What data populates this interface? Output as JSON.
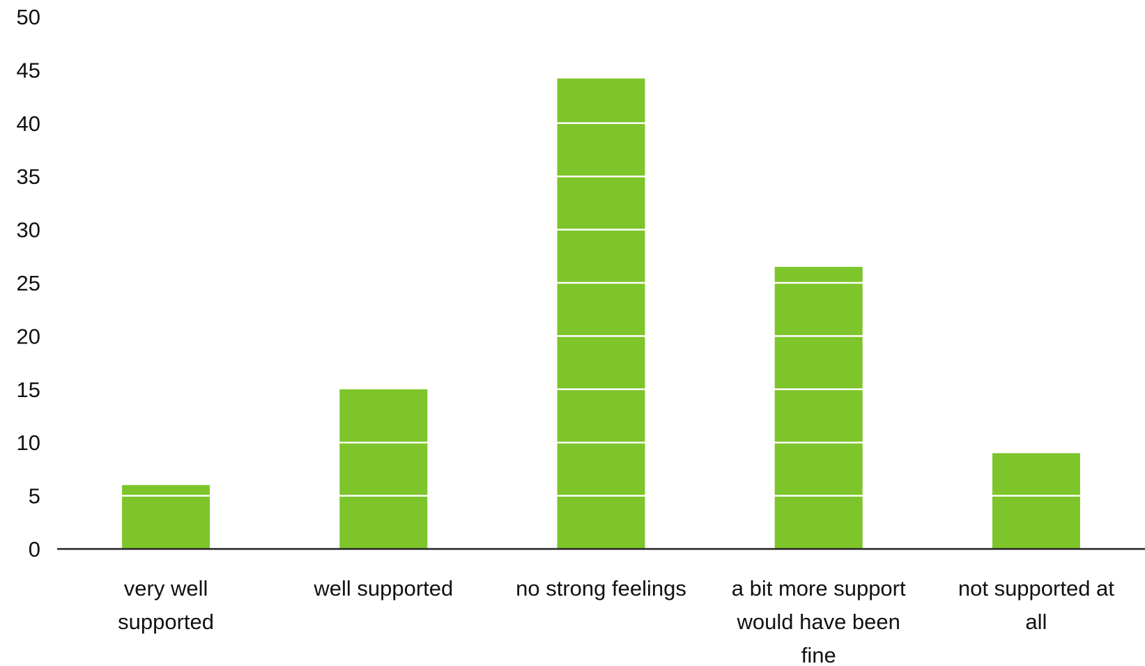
{
  "chart_data": {
    "type": "bar",
    "categories": [
      [
        "very well",
        "supported"
      ],
      [
        "well supported"
      ],
      [
        "no strong feelings"
      ],
      [
        "a bit more support",
        "would have been",
        "fine"
      ],
      [
        "not supported at",
        "all"
      ]
    ],
    "values": [
      6,
      15,
      44.2,
      26.5,
      9
    ],
    "title": "",
    "xlabel": "",
    "ylabel": "",
    "ylim": [
      0,
      50
    ],
    "yticks": [
      0,
      5,
      10,
      15,
      20,
      25,
      30,
      35,
      40,
      45,
      50
    ],
    "grid": false,
    "legend": "none",
    "colors": {
      "bar": "#7DC52A",
      "gridline_on_bar": "#ffffff",
      "axis": "#222222"
    }
  }
}
